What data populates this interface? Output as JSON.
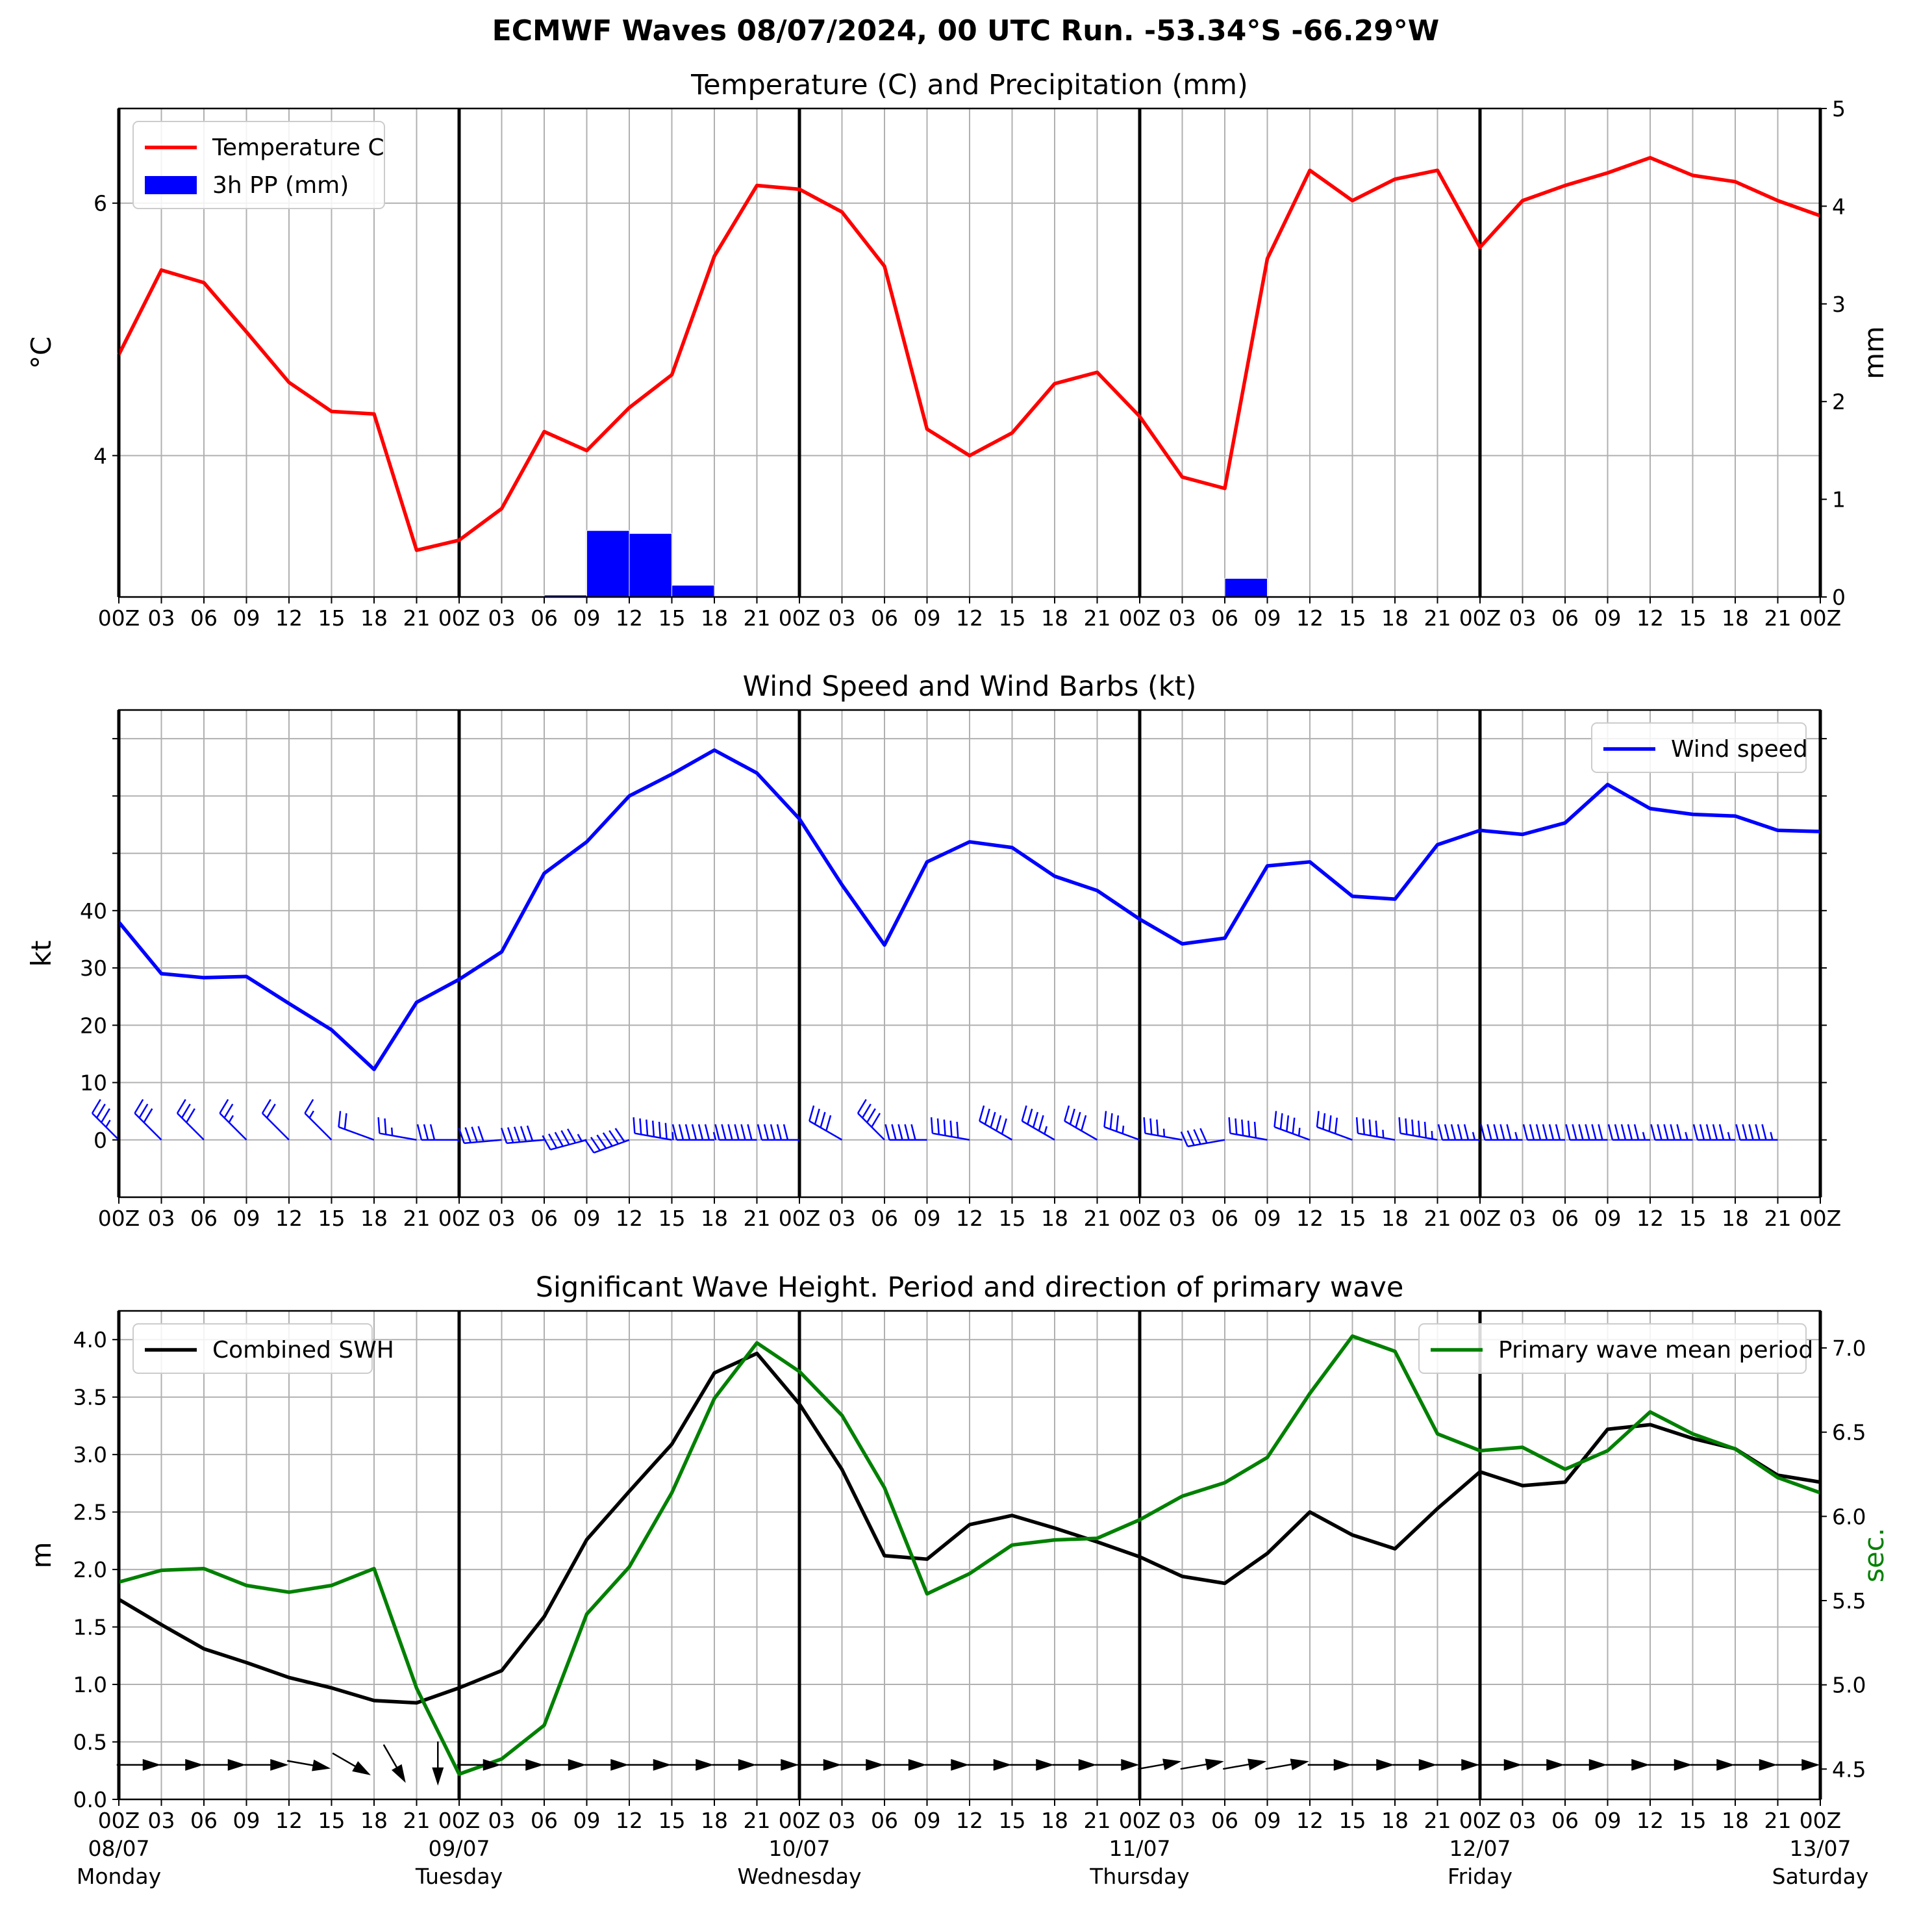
{
  "figure_title": "ECMWF Waves 08/07/2024, 00 UTC Run. -53.34°S -66.29°W",
  "colors": {
    "temperature": "#ff0000",
    "precip": "#0000ff",
    "wind": "#0000ff",
    "swh": "#000000",
    "period": "#008000",
    "grid": "#b0b0b0",
    "day_line": "#000000"
  },
  "time_axis": {
    "hours": [
      0,
      3,
      6,
      9,
      12,
      15,
      18,
      21,
      24,
      27,
      30,
      33,
      36,
      39,
      42,
      45,
      48,
      51,
      54,
      57,
      60,
      63,
      66,
      69,
      72,
      75,
      78,
      81,
      84,
      87,
      90,
      93,
      96,
      99,
      102,
      105,
      108,
      111,
      114,
      117,
      120
    ],
    "tick_labels": [
      "00Z",
      "03",
      "06",
      "09",
      "12",
      "15",
      "18",
      "21",
      "00Z",
      "03",
      "06",
      "09",
      "12",
      "15",
      "18",
      "21",
      "00Z",
      "03",
      "06",
      "09",
      "12",
      "15",
      "18",
      "21",
      "00Z",
      "03",
      "06",
      "09",
      "12",
      "15",
      "18",
      "21",
      "00Z",
      "03",
      "06",
      "09",
      "12",
      "15",
      "18",
      "21",
      "00Z"
    ],
    "day_hours": [
      0,
      24,
      48,
      72,
      96,
      120
    ],
    "day_labels": [
      {
        "hour": 0,
        "date": "08/07",
        "weekday": "Monday"
      },
      {
        "hour": 24,
        "date": "09/07",
        "weekday": "Tuesday"
      },
      {
        "hour": 48,
        "date": "10/07",
        "weekday": "Wednesday"
      },
      {
        "hour": 72,
        "date": "11/07",
        "weekday": "Thursday"
      },
      {
        "hour": 96,
        "date": "12/07",
        "weekday": "Friday"
      },
      {
        "hour": 120,
        "date": "13/07",
        "weekday": "Saturday"
      }
    ]
  },
  "chart_data": [
    {
      "type": "line",
      "title": "Temperature (C) and Precipitation (mm)",
      "ylabel": "°C",
      "y2label": "mm",
      "ylim": [
        2.88,
        6.75
      ],
      "y2lim": [
        0,
        5
      ],
      "yticks": [
        4,
        6
      ],
      "y2ticks": [
        0,
        1,
        2,
        3,
        4,
        5
      ],
      "legend_position": "upper-left",
      "grid": true,
      "series": [
        {
          "name": "Temperature C",
          "axis": "left",
          "values": [
            4.8,
            5.47,
            5.37,
            4.98,
            4.58,
            4.35,
            4.33,
            3.25,
            3.33,
            3.58,
            4.19,
            4.04,
            4.38,
            4.64,
            5.58,
            6.14,
            6.11,
            5.93,
            5.5,
            4.21,
            4.0,
            4.18,
            4.57,
            4.66,
            4.31,
            3.83,
            3.74,
            5.56,
            6.26,
            6.02,
            6.19,
            6.26,
            5.65,
            6.02,
            6.14,
            6.24,
            6.36,
            6.22,
            6.17,
            6.02,
            5.9
          ]
        },
        {
          "name": "3h PP (mm)",
          "axis": "right",
          "type": "bar",
          "values": [
            0,
            0,
            0,
            0,
            0,
            0,
            0,
            0,
            0,
            0.01,
            0.02,
            0.68,
            0.65,
            0.12,
            0,
            0,
            0,
            0,
            0,
            0,
            0,
            0,
            0,
            0,
            0,
            0,
            0.19,
            0,
            0,
            0,
            0,
            0,
            0,
            0,
            0,
            0,
            0,
            0.01,
            0,
            0
          ]
        }
      ]
    },
    {
      "type": "line",
      "title": "Wind Speed and Wind Barbs (kt)",
      "ylabel": "kt",
      "ylim": [
        -10,
        75
      ],
      "yticks": [
        0,
        10,
        20,
        30,
        40
      ],
      "minor_yticks": [
        50,
        60,
        70
      ],
      "legend_position": "upper-right",
      "grid": true,
      "series": [
        {
          "name": "Wind speed",
          "values": [
            38,
            29,
            28.3,
            28.5,
            23.8,
            19.2,
            12.3,
            24,
            28,
            32.8,
            46.5,
            52,
            60,
            63.8,
            68,
            64,
            56,
            44.5,
            34,
            48.5,
            52,
            51,
            46,
            43.5,
            38.5,
            34.2,
            35.2,
            47.8,
            48.5,
            42.5,
            42,
            51.5,
            54,
            53.3,
            55.3,
            62,
            57.8,
            56.8,
            56.5,
            54,
            53.8
          ]
        }
      ],
      "barbs_from_direction_deg": [
        315,
        315,
        315,
        315,
        315,
        315,
        290,
        280,
        270,
        265,
        265,
        255,
        250,
        280,
        270,
        270,
        270,
        300,
        315,
        270,
        280,
        300,
        300,
        300,
        290,
        280,
        260,
        280,
        290,
        290,
        280,
        280,
        270,
        270,
        270,
        270,
        270,
        270,
        270,
        270
      ]
    },
    {
      "type": "line",
      "title": "Significant Wave Height. Period and direction of primary wave",
      "ylabel": "m",
      "y2label": "sec.",
      "ylim": [
        0,
        4.25
      ],
      "y2lim": [
        4.32,
        7.22
      ],
      "yticks": [
        0.0,
        0.5,
        1.0,
        1.5,
        2.0,
        2.5,
        3.0,
        3.5,
        4.0
      ],
      "ytick_labels": [
        "0.0",
        "0.5",
        "1.0",
        "1.5",
        "2.0",
        "2.5",
        "3.0",
        "3.5",
        "4.0"
      ],
      "y2ticks": [
        4.5,
        5.0,
        5.5,
        6.0,
        6.5,
        7.0
      ],
      "y2tick_labels": [
        "4.5",
        "5.0",
        "5.5",
        "6.0",
        "6.5",
        "7.0"
      ],
      "grid": true,
      "series": [
        {
          "name": "Combined SWH",
          "axis": "left",
          "legend_position": "upper-left",
          "values": [
            1.74,
            1.52,
            1.31,
            1.19,
            1.06,
            0.97,
            0.86,
            0.84,
            0.97,
            1.12,
            1.59,
            2.26,
            2.68,
            3.09,
            3.71,
            3.88,
            3.44,
            2.87,
            2.12,
            2.09,
            2.39,
            2.47,
            2.36,
            2.24,
            2.11,
            1.94,
            1.88,
            2.14,
            2.5,
            2.3,
            2.18,
            2.53,
            2.85,
            2.73,
            2.76,
            3.22,
            3.26,
            3.14,
            3.05,
            2.82,
            2.76
          ]
        },
        {
          "name": "Primary wave mean period",
          "axis": "right",
          "legend_position": "upper-right",
          "values": [
            5.61,
            5.68,
            5.69,
            5.59,
            5.55,
            5.59,
            5.69,
            4.98,
            4.47,
            4.56,
            4.76,
            5.42,
            5.7,
            6.14,
            6.7,
            7.03,
            6.86,
            6.6,
            6.17,
            5.54,
            5.66,
            5.83,
            5.86,
            5.87,
            5.98,
            6.12,
            6.2,
            6.35,
            6.73,
            7.07,
            6.98,
            6.49,
            6.39,
            6.41,
            6.28,
            6.39,
            6.62,
            6.49,
            6.4,
            6.23,
            6.14
          ]
        }
      ],
      "arrows_direction_deg": [
        90,
        90,
        90,
        90,
        100,
        120,
        150,
        180,
        90,
        90,
        90,
        90,
        90,
        90,
        90,
        90,
        90,
        90,
        90,
        90,
        90,
        90,
        90,
        90,
        80,
        80,
        80,
        80,
        90,
        90,
        90,
        90,
        90,
        90,
        90,
        90,
        90,
        90,
        90,
        90
      ]
    }
  ]
}
